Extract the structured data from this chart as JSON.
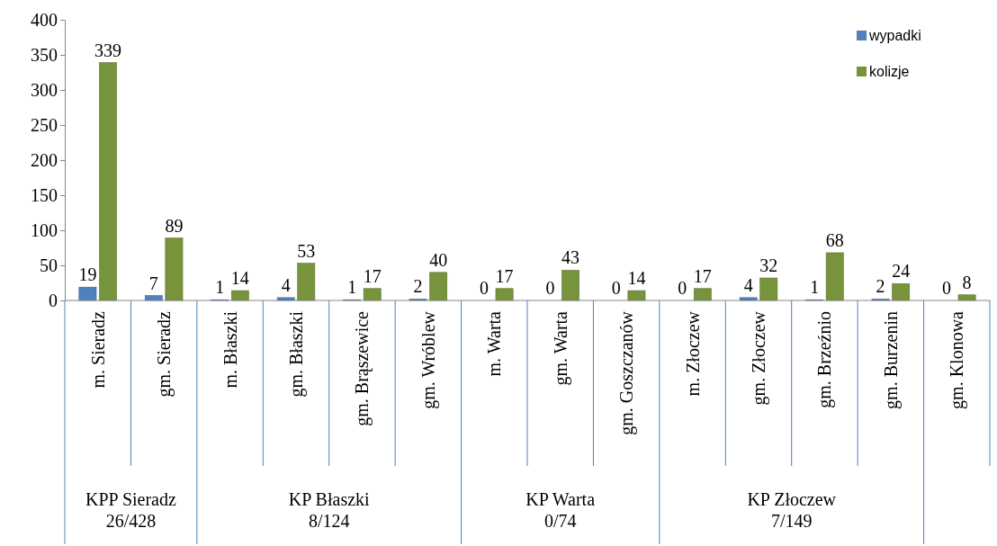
{
  "chart_data": {
    "type": "bar",
    "categories": [
      "m. Sieradz",
      "gm. Sieradz",
      "m. Błaszki",
      "gm. Błaszki",
      "gm. Brąszewice",
      "gm. Wróblew",
      "m. Warta",
      "gm. Warta",
      "gm. Goszczanów",
      "m. Złoczew",
      "gm. Złoczew",
      "gm. Brzeźnio",
      "gm. Burzenin",
      "gm. Klonowa"
    ],
    "series": [
      {
        "name": "wypadki",
        "color": "#4f81bd",
        "values": [
          19,
          7,
          1,
          4,
          1,
          2,
          0,
          0,
          0,
          0,
          4,
          1,
          2,
          0
        ]
      },
      {
        "name": "kolizje",
        "color": "#77933c",
        "values": [
          339,
          89,
          14,
          53,
          17,
          40,
          17,
          43,
          14,
          17,
          32,
          68,
          24,
          8
        ]
      }
    ],
    "ylim": [
      0,
      400
    ],
    "yticks": [
      0,
      50,
      100,
      150,
      200,
      250,
      300,
      350,
      400
    ],
    "data_labels": true,
    "legend": "top right",
    "grid": false,
    "annotations": [
      "KPP Sieradz\n26/428",
      "KP Błaszki\n8/124",
      "KP Warta\n0/74",
      "KP Złoczew\n7/149"
    ]
  }
}
